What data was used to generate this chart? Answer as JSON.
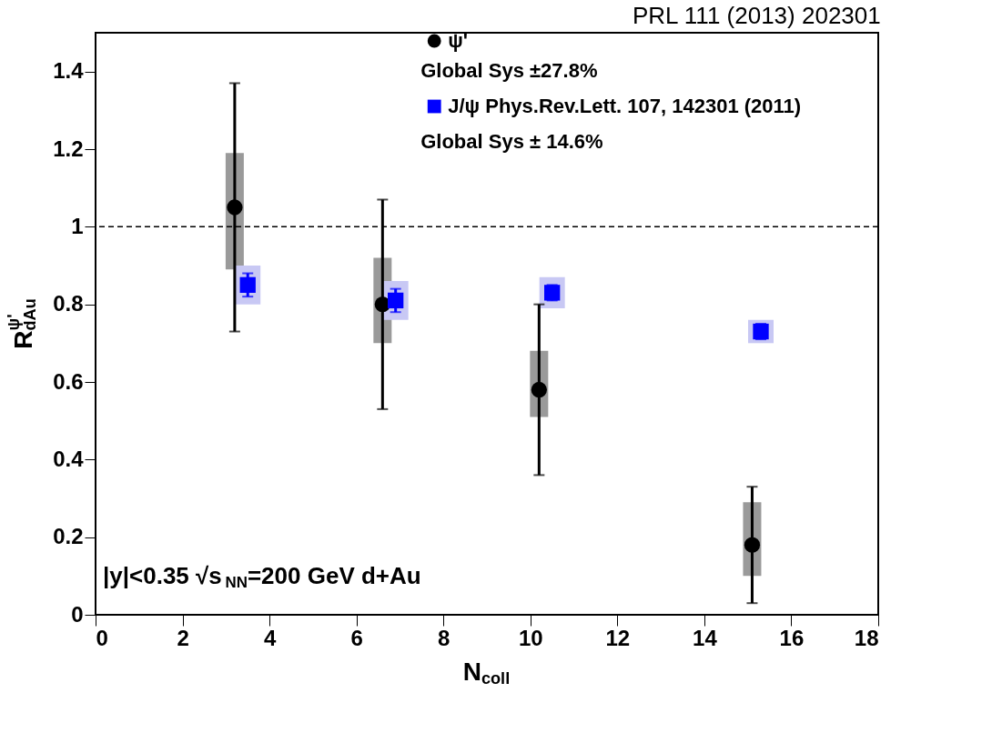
{
  "chart_data": {
    "type": "scatter",
    "xlabel": "N$_{coll}$",
    "ylabel": "R$^{ψ'}$$_{dAu}$",
    "xlim": [
      0,
      18
    ],
    "xticks": [
      0,
      2,
      4,
      6,
      8,
      10,
      12,
      14,
      16,
      18
    ],
    "ylim": [
      0,
      1.5
    ],
    "yticks": [
      0,
      0.2,
      0.4,
      0.6,
      0.8,
      1,
      1.2,
      1.4
    ],
    "grid": false,
    "legend": "top",
    "series": [
      {
        "type": "bar",
        "color": "#9a9a9a",
        "x": [
          3.2,
          6.6,
          10.2,
          15.1
        ],
        "base": [
          0.89,
          0.7,
          0.51,
          0.1
        ],
        "values": [
          0.3,
          0.22,
          0.17,
          0.19
        ]
      },
      {
        "type": "bar",
        "color": "#c8c8f4",
        "x": [
          3.5,
          6.9,
          10.5,
          15.3
        ],
        "base": [
          0.8,
          0.76,
          0.79,
          0.7
        ],
        "values": [
          0.1,
          0.1,
          0.08,
          0.06
        ]
      },
      {
        "name": "ψ'",
        "marker": "circle",
        "color": "#000000",
        "x": [
          3.2,
          6.6,
          10.2,
          15.1
        ],
        "values": [
          1.05,
          0.8,
          0.58,
          0.18
        ],
        "errors": [
          [
            0.73,
            1.37
          ],
          [
            0.53,
            1.07
          ],
          [
            0.36,
            0.8
          ],
          [
            0.03,
            0.33
          ]
        ]
      },
      {
        "name": "J/ψ Phys.Rev.Lett. 107, 142301 (2011)",
        "marker": "square",
        "color": "#0000ff",
        "x": [
          3.5,
          6.9,
          10.5,
          15.3
        ],
        "values": [
          0.85,
          0.81,
          0.83,
          0.73
        ],
        "errors": [
          [
            0.82,
            0.88
          ],
          [
            0.78,
            0.84
          ],
          [
            0.81,
            0.85
          ],
          [
            0.71,
            0.75
          ]
        ]
      }
    ],
    "ref_lines": [
      {
        "axis": "y",
        "value": 1,
        "line_style": "dashed",
        "color": "#000000"
      }
    ],
    "annotations": [
      "PRL 111 (2013) 202301",
      "Global Sys ±27.8%",
      "Global Sys ± 14.6%",
      "|y|<0.35 √s$_{NN}$=200 GeV d+Au"
    ]
  }
}
